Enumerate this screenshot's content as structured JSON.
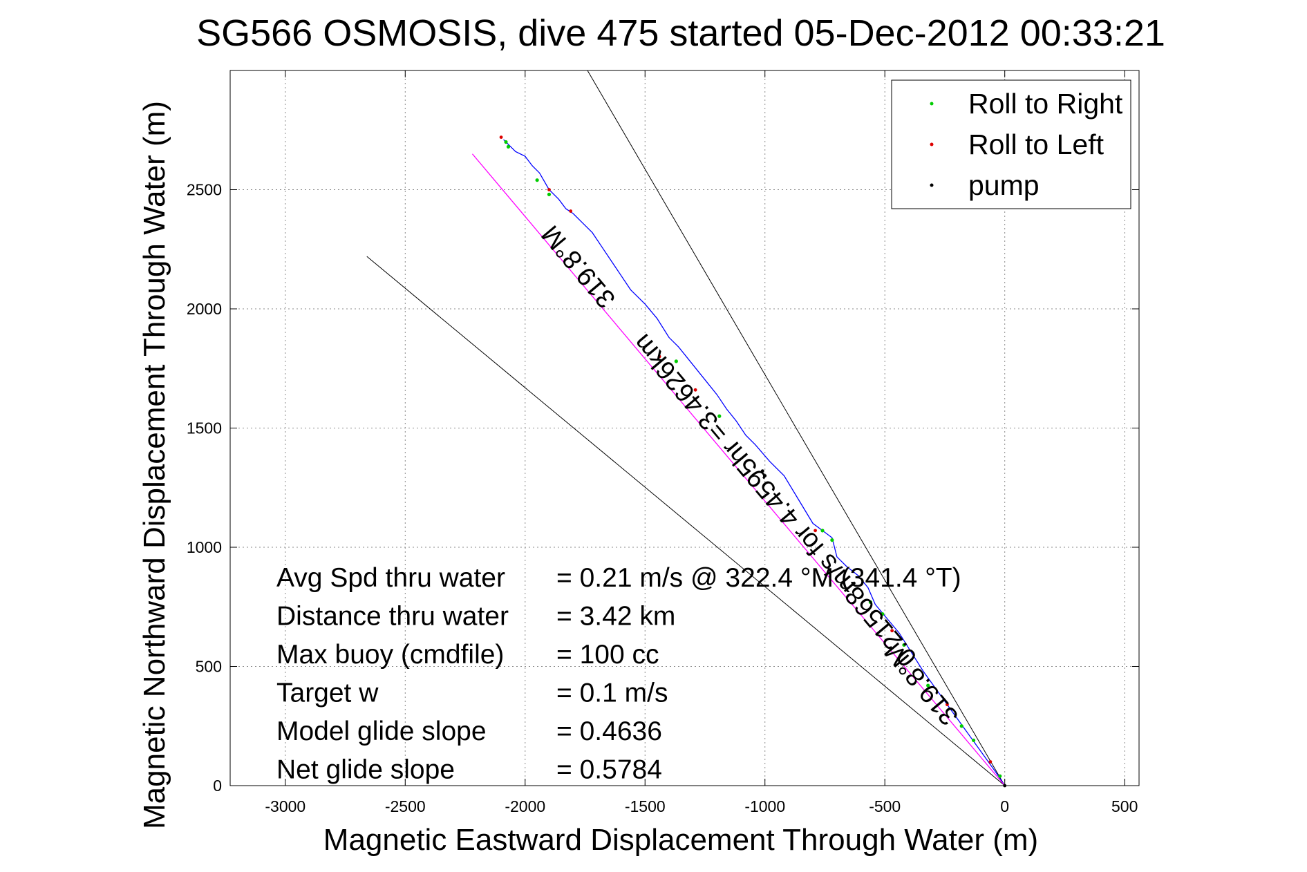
{
  "chart_data": {
    "type": "line",
    "title": "SG566 OSMOSIS, dive 475 started 05-Dec-2012 00:33:21",
    "xlabel": "Magnetic Eastward Displacement Through Water (m)",
    "ylabel": "Magnetic Northward Displacement Through Water (m)",
    "xlim": [
      -3230,
      560
    ],
    "ylim": [
      0,
      3000
    ],
    "xticks": [
      -3000,
      -2500,
      -2000,
      -1500,
      -1000,
      -500,
      0,
      500
    ],
    "yticks": [
      0,
      500,
      1000,
      1500,
      2000,
      2500
    ],
    "grid": true,
    "legend_position": "top-right",
    "legend": [
      {
        "label": "Roll to Right",
        "color": "#00cc00"
      },
      {
        "label": "Roll to Left",
        "color": "#dd0000"
      },
      {
        "label": "pump",
        "color": "#000000"
      }
    ],
    "colors": {
      "track": "#0000ff",
      "mean_line": "#ff00ff",
      "guide": "#000000"
    },
    "series": [
      {
        "role": "track",
        "x": [
          0,
          -40,
          -90,
          -140,
          -190,
          -240,
          -290,
          -340,
          -390,
          -440,
          -490,
          -540,
          -570,
          -610,
          -660,
          -700,
          -720,
          -760,
          -800,
          -860,
          -920,
          -980,
          -1040,
          -1080,
          -1120,
          -1160,
          -1200,
          -1240,
          -1280,
          -1320,
          -1360,
          -1400,
          -1450,
          -1500,
          -1560,
          -1600,
          -1640,
          -1680,
          -1720,
          -1760,
          -1800,
          -1830,
          -1860,
          -1900,
          -1940,
          -1970,
          -2000,
          -2040,
          -2070,
          -2090
        ],
        "y": [
          0,
          60,
          130,
          200,
          270,
          340,
          410,
          480,
          560,
          640,
          700,
          760,
          830,
          880,
          920,
          960,
          1040,
          1070,
          1100,
          1200,
          1300,
          1360,
          1430,
          1470,
          1530,
          1580,
          1640,
          1690,
          1740,
          1790,
          1840,
          1880,
          1960,
          2020,
          2080,
          2140,
          2200,
          2260,
          2320,
          2360,
          2400,
          2420,
          2460,
          2500,
          2570,
          2600,
          2640,
          2660,
          2690,
          2710
        ]
      },
      {
        "role": "mean",
        "x": [
          0,
          -2220
        ],
        "y": [
          0,
          2650
        ]
      }
    ],
    "guide_lines": [
      {
        "x": [
          0,
          -1740
        ],
        "y": [
          0,
          3000
        ]
      },
      {
        "x": [
          0,
          -2660
        ],
        "y": [
          0,
          2220
        ]
      }
    ],
    "roll_right": {
      "x": [
        -20,
        -130,
        -180,
        -320,
        -420,
        -510,
        -560,
        -720,
        -760,
        -1190,
        -1370,
        -1900,
        -1950,
        -2070,
        -2080
      ],
      "y": [
        40,
        190,
        250,
        420,
        590,
        720,
        770,
        1030,
        1070,
        1550,
        1780,
        2480,
        2540,
        2680,
        2700
      ]
    },
    "roll_left": {
      "x": [
        -60,
        -240,
        -470,
        -790,
        -1290,
        -1440,
        -1810,
        -1900,
        -2100
      ],
      "y": [
        100,
        340,
        650,
        1070,
        1660,
        1800,
        2410,
        2500,
        2720
      ]
    },
    "pump": {
      "x": [
        0,
        -1000,
        -1010
      ],
      "y": [
        0,
        1300,
        1320
      ]
    },
    "annotations": [
      {
        "text": "319.8°M",
        "x": -1750,
        "y": 2200,
        "rotation_deg": 230
      },
      {
        "text": "0.21568m/s for 4.4595hr =3.4626km",
        "x": -930,
        "y": 1220,
        "rotation_deg": 230
      },
      {
        "text": "319.8°M",
        "x": -320,
        "y": 450,
        "rotation_deg": 230
      }
    ],
    "stats": [
      {
        "label": "Avg Spd thru water",
        "value": "=  0.21 m/s @ 322.4 °M (341.4 °T)"
      },
      {
        "label": "Distance thru water",
        "value": "=  3.42 km"
      },
      {
        "label": "Max buoy (cmdfile)",
        "value": "= 100 cc"
      },
      {
        "label": "Target w",
        "value": "= 0.1 m/s"
      },
      {
        "label": "Model glide slope",
        "value": "= 0.4636"
      },
      {
        "label": "Net glide slope",
        "value": "= 0.5784"
      }
    ]
  }
}
